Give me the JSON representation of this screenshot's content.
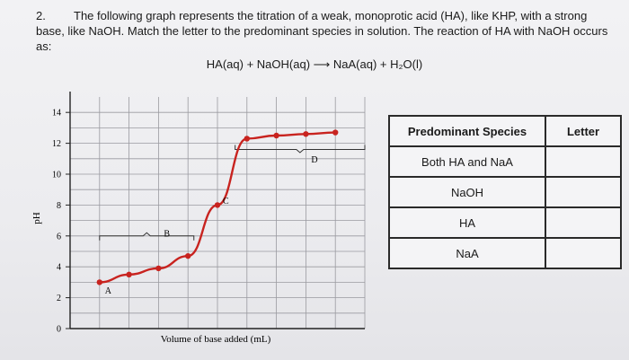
{
  "question": {
    "number": "2.",
    "text": "The following graph represents the titration of a weak, monoprotic acid (HA), like KHP, with a strong base, like NaOH. Match the letter to the predominant species in solution. The reaction of HA with NaOH occurs as:",
    "equation": "HA(aq) + NaOH(aq) ⟶ NaA(aq) + H₂O(l)"
  },
  "chart_data": {
    "type": "line",
    "ylabel": "pH",
    "xlabel": "Volume of base added (mL)",
    "y_ticks": [
      "0",
      "2",
      "4",
      "6",
      "8",
      "10",
      "12",
      "14"
    ],
    "ylim": [
      0,
      15
    ],
    "grid": true,
    "series": [
      {
        "x": [
          1,
          2,
          3,
          4,
          5,
          6,
          7,
          8,
          9
        ],
        "y": [
          3.0,
          3.5,
          3.9,
          4.7,
          8.0,
          12.3,
          12.5,
          12.6,
          12.7
        ]
      }
    ],
    "annotations": [
      {
        "label": "A",
        "x": 1,
        "y": 2.5
      },
      {
        "label": "B",
        "x": 3,
        "y": 6.2
      },
      {
        "label": "C",
        "x": 5,
        "y": 8.3
      },
      {
        "label": "D",
        "x": 8,
        "y": 11.0
      }
    ]
  },
  "table": {
    "headers": [
      "Predominant Species",
      "Letter"
    ],
    "rows": [
      {
        "species": "Both HA and NaA",
        "letter": ""
      },
      {
        "species": "NaOH",
        "letter": ""
      },
      {
        "species": "HA",
        "letter": ""
      },
      {
        "species": "NaA",
        "letter": ""
      }
    ]
  }
}
